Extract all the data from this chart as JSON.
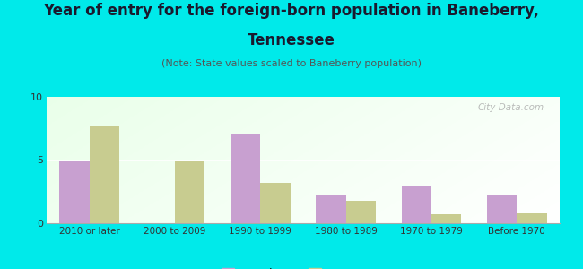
{
  "title_line1": "Year of entry for the foreign-born population in Baneberry,",
  "title_line2": "Tennessee",
  "subtitle": "(Note: State values scaled to Baneberry population)",
  "categories": [
    "2010 or later",
    "2000 to 2009",
    "1990 to 1999",
    "1980 to 1989",
    "1970 to 1979",
    "Before 1970"
  ],
  "baneberry_values": [
    4.9,
    0,
    7.0,
    2.2,
    3.0,
    2.2
  ],
  "tennessee_values": [
    7.7,
    5.0,
    3.2,
    1.8,
    0.7,
    0.8
  ],
  "baneberry_color": "#c8a0d0",
  "tennessee_color": "#c8cc90",
  "background_color": "#00eaea",
  "ylim": [
    0,
    10
  ],
  "yticks": [
    0,
    5,
    10
  ],
  "bar_width": 0.35,
  "legend_labels": [
    "Baneberry",
    "Tennessee"
  ],
  "watermark": "City-Data.com",
  "title_fontsize": 12,
  "subtitle_fontsize": 8
}
